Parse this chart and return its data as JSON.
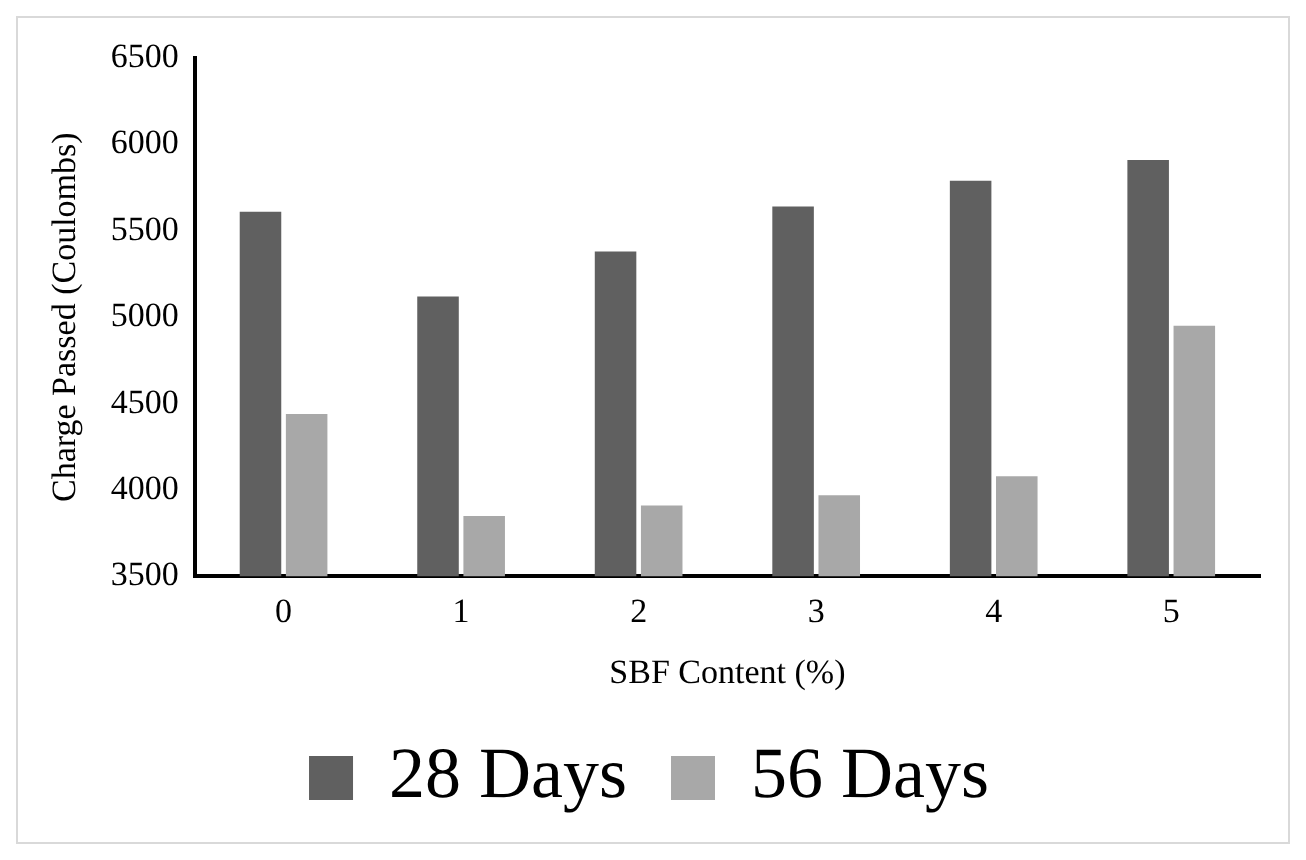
{
  "chart_data": {
    "type": "bar",
    "xlabel": "SBF Content (%)",
    "ylabel": "Charge Passed (Coulombs)",
    "categories": [
      "0",
      "1",
      "2",
      "3",
      "4",
      "5"
    ],
    "series": [
      {
        "name": "28 Days",
        "color": "#606060",
        "values": [
          5610,
          5120,
          5380,
          5640,
          5790,
          5910
        ]
      },
      {
        "name": "56 Days",
        "color": "#a8a8a8",
        "values": [
          4440,
          3850,
          3910,
          3970,
          4080,
          4950
        ]
      }
    ],
    "ylim": [
      3500,
      6500
    ],
    "yticks": [
      3500,
      4000,
      4500,
      5000,
      5500,
      6000,
      6500
    ],
    "grid": false,
    "legend": "bottom"
  }
}
